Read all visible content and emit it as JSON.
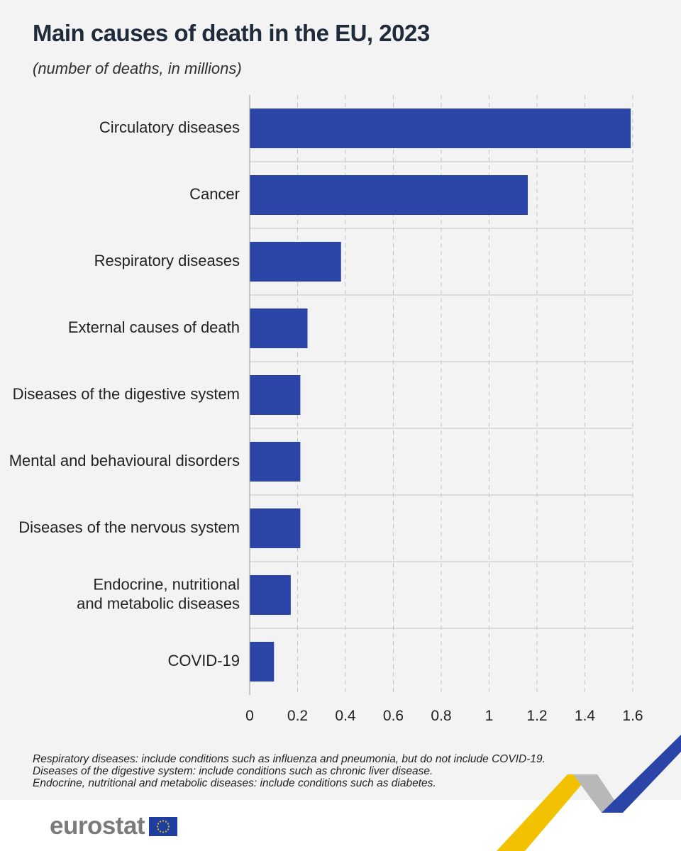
{
  "title": "Main causes of death in the EU, 2023",
  "subtitle": "(number of deaths, in millions)",
  "chart_data": {
    "type": "bar",
    "orientation": "horizontal",
    "categories": [
      "Circulatory diseases",
      "Cancer",
      "Respiratory diseases",
      "External causes of death",
      "Diseases of the digestive system",
      "Mental and behavioural disorders",
      "Diseases of the nervous system",
      "Endocrine, nutritional and metabolic diseases",
      "COVID-19"
    ],
    "category_lines": [
      [
        "Circulatory diseases"
      ],
      [
        "Cancer"
      ],
      [
        "Respiratory diseases"
      ],
      [
        "External causes of death"
      ],
      [
        "Diseases of the digestive system"
      ],
      [
        "Mental and behavioural disorders"
      ],
      [
        "Diseases of the nervous system"
      ],
      [
        "Endocrine, nutritional",
        "and metabolic diseases"
      ],
      [
        "COVID-19"
      ]
    ],
    "values": [
      1.59,
      1.16,
      0.38,
      0.24,
      0.21,
      0.21,
      0.21,
      0.17,
      0.1
    ],
    "xlim": [
      0,
      1.6
    ],
    "xticks": [
      "0",
      "0.2",
      "0.4",
      "0.6",
      "0.8",
      "1",
      "1.2",
      "1.4",
      "1.6"
    ],
    "xlabel": "",
    "ylabel": "",
    "grid": true,
    "bar_color": "#2a44a8"
  },
  "footnotes": [
    "Respiratory diseases: include conditions such as influenza and pneumonia, but do not include COVID-19.",
    "Diseases of the digestive system: include conditions such as chronic liver disease.",
    "Endocrine, nutritional and metabolic diseases: include conditions such as diabetes."
  ],
  "logo": {
    "text": "eurostat",
    "flag_icon": "eu-flag-icon"
  },
  "colors": {
    "accent_yellow": "#f2c200",
    "accent_blue": "#2a44a8",
    "accent_grey": "#b8b8b8"
  }
}
